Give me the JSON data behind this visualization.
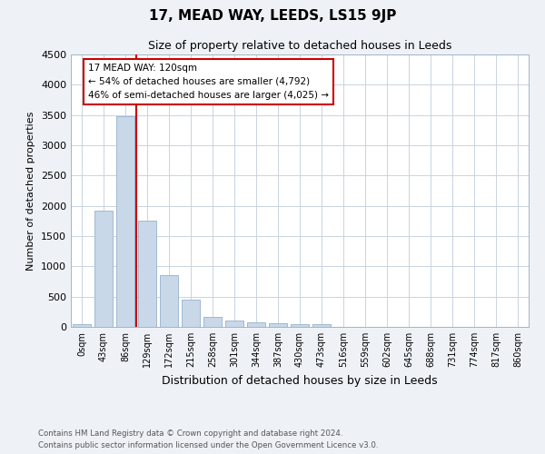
{
  "title": "17, MEAD WAY, LEEDS, LS15 9JP",
  "subtitle": "Size of property relative to detached houses in Leeds",
  "xlabel": "Distribution of detached houses by size in Leeds",
  "ylabel": "Number of detached properties",
  "bar_labels": [
    "0sqm",
    "43sqm",
    "86sqm",
    "129sqm",
    "172sqm",
    "215sqm",
    "258sqm",
    "301sqm",
    "344sqm",
    "387sqm",
    "430sqm",
    "473sqm",
    "516sqm",
    "559sqm",
    "602sqm",
    "645sqm",
    "688sqm",
    "731sqm",
    "774sqm",
    "817sqm",
    "860sqm"
  ],
  "bar_values": [
    50,
    1920,
    3480,
    1760,
    850,
    450,
    170,
    105,
    75,
    55,
    40,
    40,
    0,
    0,
    0,
    0,
    0,
    0,
    0,
    0,
    0
  ],
  "bar_color": "#c8d8e8",
  "bar_edge_color": "#a0b8d0",
  "property_line_label": "17 MEAD WAY: 120sqm",
  "annotation_line1": "← 54% of detached houses are smaller (4,792)",
  "annotation_line2": "46% of semi-detached houses are larger (4,025) →",
  "annotation_box_color": "#ffffff",
  "annotation_box_edge": "#cc0000",
  "red_line_color": "#cc0000",
  "ylim": [
    0,
    4500
  ],
  "yticks": [
    0,
    500,
    1000,
    1500,
    2000,
    2500,
    3000,
    3500,
    4000,
    4500
  ],
  "footnote1": "Contains HM Land Registry data © Crown copyright and database right 2024.",
  "footnote2": "Contains public sector information licensed under the Open Government Licence v3.0.",
  "bg_color": "#eef2f7",
  "plot_bg_color": "#ffffff",
  "grid_color": "#c8d4e0"
}
